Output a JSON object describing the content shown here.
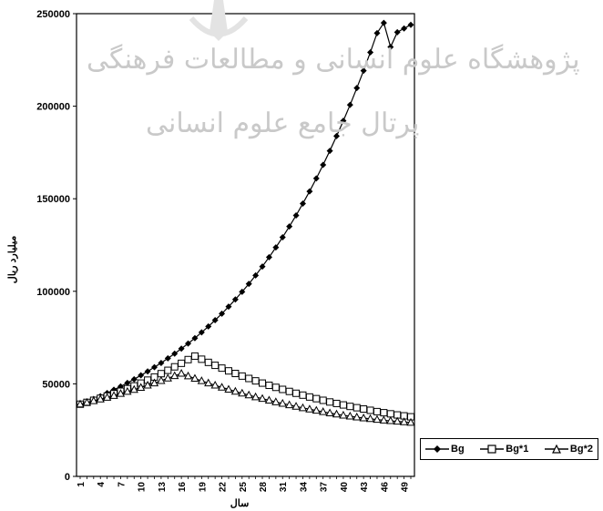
{
  "watermark": {
    "line1": "پژوهشگاه علوم انسانی و مطالعات فرهنگی",
    "line2": "پرتال جامع علوم انسانی"
  },
  "chart_data": {
    "type": "line",
    "title": "",
    "xlabel": "سال",
    "ylabel": "میلیارد ریال",
    "ylim": [
      0,
      250000
    ],
    "yticks": [
      "0",
      "50000",
      "100000",
      "150000",
      "200000",
      "250000"
    ],
    "x_tick_labels": [
      "1",
      "4",
      "7",
      "10",
      "13",
      "16",
      "19",
      "22",
      "25",
      "28",
      "31",
      "34",
      "37",
      "40",
      "43",
      "46",
      "49"
    ],
    "grid": false,
    "legend_position": "bottom-right",
    "x": [
      1,
      2,
      3,
      4,
      5,
      6,
      7,
      8,
      9,
      10,
      11,
      12,
      13,
      14,
      15,
      16,
      17,
      18,
      19,
      20,
      21,
      22,
      23,
      24,
      25,
      26,
      27,
      28,
      29,
      30,
      31,
      32,
      33,
      34,
      35,
      36,
      37,
      38,
      39,
      40,
      41,
      42,
      43,
      44,
      45,
      46,
      47,
      48,
      49,
      50
    ],
    "series": [
      {
        "name": "Bg",
        "marker": "diamond",
        "color": "#000000",
        "values": [
          39000,
          40200,
          41800,
          43300,
          45000,
          46800,
          48600,
          50500,
          52500,
          54600,
          56700,
          59000,
          61300,
          63800,
          66300,
          69000,
          71800,
          74700,
          77800,
          81000,
          84400,
          87900,
          91700,
          95600,
          99700,
          104000,
          108600,
          113400,
          118400,
          123700,
          129200,
          135000,
          141000,
          147400,
          154000,
          161000,
          168300,
          175900,
          183900,
          192100,
          200700,
          209800,
          219200,
          229100,
          239500,
          245000,
          232000,
          240000,
          242000,
          244000
        ]
      },
      {
        "name": "Bg*1",
        "marker": "square",
        "color": "#000000",
        "values": [
          39000,
          40000,
          41100,
          42200,
          43400,
          44700,
          46000,
          47400,
          48900,
          50400,
          52000,
          53700,
          55500,
          57300,
          59200,
          61100,
          63100,
          65000,
          63300,
          61600,
          60000,
          58500,
          57000,
          55600,
          54200,
          52900,
          51600,
          50400,
          49200,
          48100,
          47000,
          45900,
          44900,
          43900,
          42900,
          42000,
          41100,
          40200,
          39400,
          38600,
          37800,
          37100,
          36400,
          35700,
          35000,
          34400,
          33800,
          33200,
          32700,
          32200
        ]
      },
      {
        "name": "Bg*2",
        "marker": "triangle",
        "color": "#000000",
        "values": [
          39000,
          39900,
          40800,
          41700,
          42600,
          43600,
          44700,
          45800,
          46900,
          48000,
          49200,
          50400,
          51700,
          53000,
          54300,
          55600,
          54200,
          52900,
          51600,
          50400,
          49200,
          48100,
          47000,
          45900,
          44900,
          43900,
          42900,
          42000,
          41100,
          40200,
          39400,
          38600,
          37800,
          37000,
          36300,
          35600,
          34900,
          34200,
          33600,
          33000,
          32500,
          32000,
          31500,
          31100,
          30700,
          30300,
          30000,
          29700,
          29400,
          29100
        ]
      }
    ]
  },
  "legend": [
    {
      "label": "Bg"
    },
    {
      "label": "Bg*1"
    },
    {
      "label": "Bg*2"
    }
  ]
}
